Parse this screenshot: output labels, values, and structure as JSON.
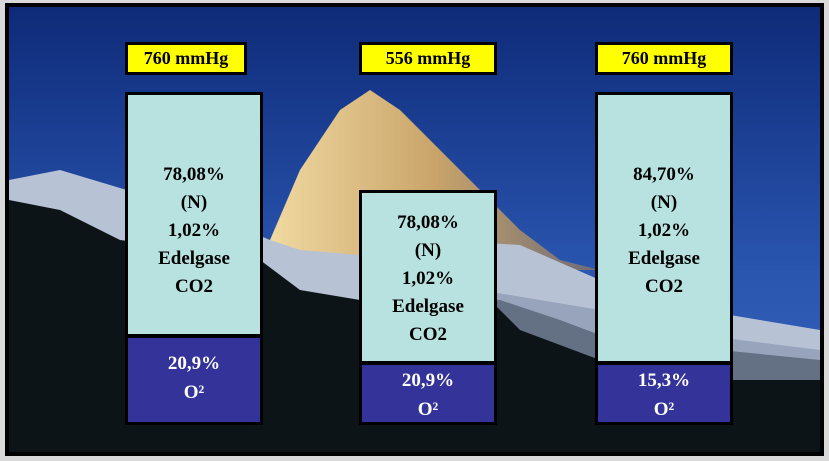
{
  "columns": [
    {
      "pressure": "760 mmHg",
      "gas_lines": [
        "78,08%",
        "(N)",
        "1,02%",
        "Edelgase",
        "CO2"
      ],
      "oxygen_lines": [
        "20,9%",
        "O²"
      ]
    },
    {
      "pressure": "556 mmHg",
      "gas_lines": [
        "78,08%",
        "(N)",
        "1,02%",
        "Edelgase",
        "CO2"
      ],
      "oxygen_lines": [
        "20,9%",
        "O²"
      ]
    },
    {
      "pressure": "760 mmHg",
      "gas_lines": [
        "84,70%",
        "(N)",
        "1,02%",
        "Edelgase",
        "CO2"
      ],
      "oxygen_lines": [
        "15,3%",
        "O²"
      ]
    }
  ]
}
